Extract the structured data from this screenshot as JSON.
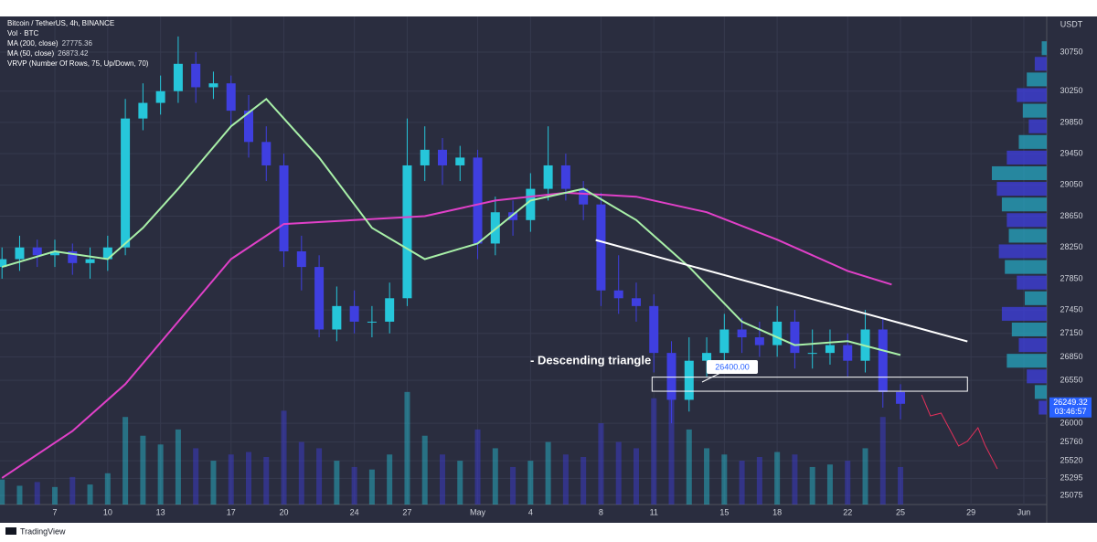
{
  "chart_data": {
    "type": "candlestick",
    "title": "Bitcoin / TetherUS, 4h, BINANCE",
    "indicators": [
      {
        "text": "Vol · BTC"
      },
      {
        "text": "MA (200, close)",
        "value": "27775.36",
        "color": "#e040c8"
      },
      {
        "text": "MA (50, close)",
        "value": "26873.42",
        "color": "#a8f0a8"
      },
      {
        "text": "VRVP (Number Of Rows, 75, Up/Down, 70)"
      }
    ],
    "axis_unit": "USDT",
    "brand": "TradingView",
    "xlim": [
      3.886,
      63.3
    ],
    "ylim": [
      24960,
      31206
    ],
    "grid": true,
    "xticks": [
      7,
      10,
      13,
      17,
      20,
      24,
      27,
      {
        "value": 31,
        "label": "May"
      },
      {
        "value": 34,
        "label": "4"
      },
      {
        "value": 38,
        "label": "8"
      },
      {
        "value": 41,
        "label": "11"
      },
      {
        "value": 45,
        "label": "15"
      },
      {
        "value": 48,
        "label": "18"
      },
      {
        "value": 52,
        "label": "22"
      },
      {
        "value": 55,
        "label": "25"
      },
      {
        "value": 59,
        "label": "29"
      },
      {
        "value": 62,
        "label": "Jun"
      }
    ],
    "yticks": [
      30750,
      30250,
      29850,
      29450,
      29050,
      28650,
      28250,
      27850,
      27450,
      27150,
      26850,
      26550,
      26000,
      25760,
      25520,
      25295,
      25075
    ],
    "up_color": "#26c6da",
    "down_color": "#3f3fe0",
    "x": [
      4,
      5,
      6,
      7,
      8,
      9,
      10,
      11,
      12,
      13,
      14,
      15,
      16,
      17,
      18,
      19,
      20,
      21,
      22,
      23,
      24,
      25,
      26,
      27,
      28,
      29,
      30,
      31,
      32,
      33,
      34,
      35,
      36,
      37,
      38,
      39,
      40,
      41,
      42,
      43,
      44,
      45,
      46,
      47,
      48,
      49,
      50,
      51,
      52,
      53,
      54,
      55
    ],
    "open": [
      28000,
      28100,
      28250,
      28150,
      28200,
      28050,
      28100,
      28250,
      29900,
      30100,
      30250,
      30600,
      30300,
      30350,
      30000,
      29600,
      29300,
      28200,
      28000,
      27200,
      27500,
      27300,
      27300,
      27600,
      29300,
      29500,
      29300,
      29400,
      28300,
      28700,
      28600,
      29000,
      29300,
      29000,
      28800,
      27700,
      27600,
      27500,
      26900,
      26300,
      26800,
      26900,
      27200,
      27100,
      27000,
      27300,
      26900,
      26900,
      27000,
      26800,
      27200,
      26400
    ],
    "high": [
      28250,
      28400,
      28350,
      28350,
      28300,
      28250,
      28400,
      30150,
      30350,
      30450,
      30950,
      30750,
      30500,
      30450,
      30200,
      29800,
      29450,
      28400,
      28150,
      27750,
      27700,
      27500,
      27800,
      29900,
      29800,
      29650,
      29550,
      29500,
      28900,
      28850,
      29200,
      29800,
      29450,
      29100,
      28950,
      28150,
      27800,
      27650,
      27050,
      27100,
      27100,
      27400,
      27350,
      27300,
      27500,
      27450,
      27200,
      27200,
      27150,
      27450,
      27350,
      26500
    ],
    "low": [
      27850,
      27950,
      28000,
      28000,
      27900,
      27850,
      27950,
      28150,
      29750,
      29950,
      30100,
      30100,
      30150,
      29800,
      29400,
      29100,
      28000,
      27700,
      27100,
      27050,
      27150,
      27100,
      27150,
      27500,
      29100,
      29050,
      29100,
      28100,
      28150,
      28400,
      28450,
      28850,
      28850,
      28600,
      27500,
      27400,
      27300,
      26650,
      26000,
      26150,
      26600,
      26750,
      26900,
      26850,
      26850,
      26700,
      26700,
      26750,
      26600,
      26650,
      26200,
      26050
    ],
    "close": [
      28100,
      28250,
      28150,
      28200,
      28050,
      28100,
      28250,
      29900,
      30100,
      30250,
      30600,
      30300,
      30350,
      30000,
      29600,
      29300,
      28200,
      28000,
      27200,
      27500,
      27300,
      27300,
      27600,
      29300,
      29500,
      29300,
      29400,
      28300,
      28700,
      28600,
      29000,
      29300,
      29000,
      28800,
      27700,
      27600,
      27500,
      26900,
      26300,
      26800,
      26900,
      27200,
      27100,
      27000,
      27300,
      26900,
      26900,
      27000,
      26800,
      27200,
      26400,
      26249
    ],
    "volume": [
      20,
      15,
      18,
      14,
      22,
      16,
      25,
      70,
      55,
      48,
      60,
      45,
      35,
      40,
      42,
      38,
      75,
      50,
      45,
      35,
      30,
      28,
      40,
      90,
      55,
      40,
      35,
      60,
      45,
      30,
      35,
      50,
      40,
      38,
      65,
      50,
      45,
      85,
      95,
      60,
      45,
      40,
      35,
      38,
      42,
      40,
      30,
      32,
      35,
      45,
      70,
      30
    ],
    "series": [
      {
        "name": "MA (200, close)",
        "color": "#e040c8",
        "x": [
          4,
          8,
          11,
          14,
          17,
          20,
          24,
          28,
          32,
          36,
          40,
          44,
          48,
          52,
          54.5
        ],
        "values": [
          25300,
          25900,
          26500,
          27300,
          28100,
          28550,
          28600,
          28650,
          28850,
          28950,
          28900,
          28700,
          28350,
          27950,
          27775
        ]
      },
      {
        "name": "MA (50, close)",
        "color": "#a8f0a8",
        "x": [
          4,
          7,
          10,
          12,
          14,
          17,
          19,
          22,
          25,
          28,
          31,
          34,
          37,
          40,
          43,
          46,
          49,
          52,
          55
        ],
        "values": [
          28000,
          28200,
          28100,
          28500,
          29000,
          29800,
          30150,
          29400,
          28500,
          28100,
          28300,
          28850,
          29000,
          28600,
          28000,
          27300,
          27000,
          27050,
          26873
        ]
      },
      {
        "name": "projection",
        "color": "#e0305a",
        "x": [
          56.2,
          56.7,
          57.3,
          58.3,
          58.8,
          59.4,
          59.8,
          60.5
        ],
        "values": [
          26364,
          26095,
          26130,
          25710,
          25770,
          25943,
          25720,
          25416
        ]
      }
    ],
    "vrvp": {
      "prices": [
        30800,
        30600,
        30400,
        30200,
        30000,
        29800,
        29600,
        29400,
        29200,
        29000,
        28800,
        28600,
        28400,
        28200,
        28000,
        27800,
        27600,
        27400,
        27200,
        27000,
        26800,
        26600,
        26400,
        26200
      ],
      "values": [
        5,
        12,
        20,
        30,
        24,
        18,
        28,
        40,
        55,
        50,
        45,
        40,
        38,
        48,
        42,
        30,
        22,
        45,
        35,
        28,
        40,
        20,
        12,
        8
      ]
    },
    "trendline": {
      "x": [
        37.7,
        58.8
      ],
      "values": [
        28345,
        27047
      ]
    },
    "zone": {
      "x": [
        40.9,
        58.8
      ],
      "values": [
        26410,
        26590
      ],
      "label": "26400.00"
    },
    "annotation": "- Descending triangle",
    "last_price": {
      "value": 26249.32,
      "label": "26249.32",
      "countdown": "03:46:57"
    }
  }
}
